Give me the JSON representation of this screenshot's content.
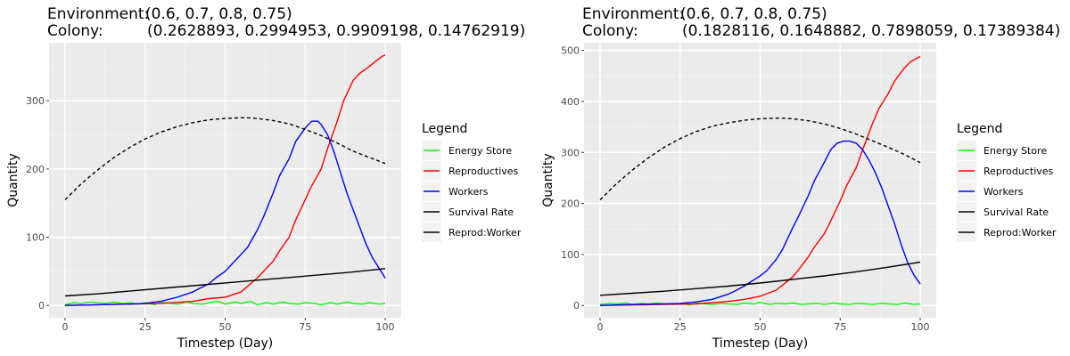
{
  "chart_data": [
    {
      "type": "line",
      "title_lines": [
        {
          "label": "Environment:",
          "value": "(0.6, 0.7, 0.8, 0.75)"
        },
        {
          "label": "Colony:",
          "value": "(0.2628893, 0.2994953, 0.9909198, 0.14762919)"
        }
      ],
      "xlabel": "Timestep (Day)",
      "ylabel": "Quantity",
      "xlim": [
        -5,
        105
      ],
      "ylim": [
        -18,
        385
      ],
      "x_ticks": [
        0,
        25,
        50,
        75,
        100
      ],
      "y_ticks": [
        0,
        100,
        200,
        300
      ],
      "grid": true,
      "legend": {
        "title": "Legend",
        "placement": "right",
        "entries": [
          "Energy Store",
          "Reproductives",
          "Workers",
          "Survival Rate",
          "Reprod:Worker"
        ]
      },
      "series": [
        {
          "name": "Energy Store",
          "color": "#00ff00",
          "style": "solid",
          "x": [
            0,
            3,
            5,
            8,
            10,
            13,
            15,
            18,
            20,
            23,
            25,
            28,
            30,
            33,
            35,
            38,
            40,
            43,
            45,
            48,
            50,
            53,
            55,
            58,
            60,
            63,
            65,
            68,
            70,
            73,
            75,
            78,
            80,
            83,
            85,
            88,
            90,
            93,
            95,
            98,
            100
          ],
          "y": [
            1,
            4,
            3,
            5,
            4,
            3,
            5,
            3,
            4,
            2,
            4,
            1,
            5,
            3,
            2,
            5,
            3,
            2,
            4,
            6,
            2,
            5,
            3,
            6,
            1,
            4,
            2,
            5,
            3,
            2,
            4,
            3,
            1,
            4,
            2,
            5,
            3,
            2,
            4,
            2,
            3
          ]
        },
        {
          "name": "Reproductives",
          "color": "#ff0000",
          "style": "solid",
          "x": [
            0,
            10,
            20,
            30,
            40,
            45,
            50,
            55,
            57,
            60,
            62,
            65,
            67,
            70,
            72,
            75,
            77,
            80,
            82,
            85,
            87,
            90,
            92,
            95,
            97,
            99,
            100
          ],
          "y": [
            0,
            1,
            2,
            3,
            6,
            10,
            12,
            20,
            28,
            40,
            50,
            65,
            80,
            100,
            125,
            155,
            175,
            200,
            230,
            270,
            300,
            330,
            340,
            350,
            358,
            365,
            367
          ]
        },
        {
          "name": "Workers",
          "color": "#0000ff",
          "style": "solid",
          "x": [
            0,
            10,
            20,
            25,
            30,
            35,
            40,
            42,
            45,
            47,
            50,
            52,
            55,
            57,
            60,
            62,
            65,
            67,
            70,
            72,
            75,
            77,
            79,
            80,
            82,
            84,
            86,
            88,
            90,
            92,
            94,
            96,
            98,
            100
          ],
          "y": [
            0,
            1,
            2,
            3,
            6,
            12,
            20,
            25,
            32,
            40,
            50,
            60,
            75,
            85,
            110,
            130,
            165,
            190,
            215,
            240,
            260,
            270,
            270,
            265,
            250,
            225,
            195,
            165,
            140,
            115,
            90,
            70,
            55,
            40
          ]
        },
        {
          "name": "Survival Rate",
          "color": "#000000",
          "style": "dashed",
          "x": [
            0,
            5,
            10,
            15,
            20,
            25,
            30,
            35,
            40,
            45,
            50,
            55,
            57,
            60,
            65,
            70,
            75,
            80,
            85,
            90,
            95,
            100
          ],
          "y": [
            155,
            178,
            198,
            216,
            231,
            244,
            254,
            262,
            268,
            272,
            274,
            275,
            275,
            274,
            271,
            266,
            258,
            249,
            238,
            226,
            217,
            208
          ]
        },
        {
          "name": "Reprod:Worker",
          "color": "#000000",
          "style": "solid",
          "x": [
            0,
            10,
            20,
            30,
            40,
            50,
            60,
            70,
            80,
            90,
            100
          ],
          "y": [
            14,
            17,
            21,
            25,
            29,
            33,
            37,
            41,
            45,
            49,
            54
          ]
        }
      ]
    },
    {
      "type": "line",
      "title_lines": [
        {
          "label": "Environment:",
          "value": "(0.6, 0.7, 0.8, 0.75)"
        },
        {
          "label": "Colony:",
          "value": "(0.1828116, 0.1648882, 0.7898059, 0.17389384)"
        }
      ],
      "xlabel": "Timestep (Day)",
      "ylabel": "Quantity",
      "xlim": [
        -5,
        105
      ],
      "ylim": [
        -24,
        515
      ],
      "x_ticks": [
        0,
        25,
        50,
        75,
        100
      ],
      "y_ticks": [
        0,
        100,
        200,
        300,
        400,
        500
      ],
      "grid": true,
      "legend": {
        "title": "Legend",
        "placement": "right",
        "entries": [
          "Energy Store",
          "Reproductives",
          "Workers",
          "Survival Rate",
          "Reprod:Worker"
        ]
      },
      "series": [
        {
          "name": "Energy Store",
          "color": "#00ff00",
          "style": "solid",
          "x": [
            0,
            3,
            5,
            8,
            10,
            13,
            15,
            18,
            20,
            23,
            25,
            28,
            30,
            33,
            35,
            38,
            40,
            43,
            45,
            48,
            50,
            53,
            55,
            58,
            60,
            63,
            65,
            68,
            70,
            73,
            75,
            78,
            80,
            83,
            85,
            88,
            90,
            93,
            95,
            98,
            100
          ],
          "y": [
            2,
            4,
            3,
            5,
            2,
            4,
            3,
            5,
            3,
            2,
            4,
            1,
            5,
            3,
            2,
            4,
            3,
            2,
            5,
            3,
            6,
            2,
            4,
            3,
            5,
            2,
            3,
            4,
            2,
            5,
            3,
            2,
            4,
            3,
            2,
            4,
            3,
            2,
            5,
            2,
            3
          ]
        },
        {
          "name": "Reproductives",
          "color": "#ff0000",
          "style": "solid",
          "x": [
            0,
            10,
            20,
            30,
            40,
            45,
            50,
            55,
            57,
            60,
            62,
            65,
            67,
            70,
            72,
            75,
            77,
            80,
            82,
            85,
            87,
            90,
            92,
            95,
            97,
            100
          ],
          "y": [
            0,
            1,
            2,
            3,
            8,
            12,
            18,
            30,
            40,
            55,
            70,
            95,
            115,
            140,
            165,
            205,
            235,
            270,
            305,
            355,
            385,
            415,
            440,
            465,
            478,
            488
          ]
        },
        {
          "name": "Workers",
          "color": "#0000ff",
          "style": "solid",
          "x": [
            0,
            10,
            20,
            25,
            30,
            35,
            40,
            42,
            45,
            47,
            50,
            52,
            55,
            57,
            60,
            62,
            65,
            67,
            70,
            72,
            74,
            76,
            78,
            80,
            82,
            84,
            86,
            88,
            90,
            92,
            94,
            96,
            98,
            100
          ],
          "y": [
            0,
            2,
            3,
            4,
            7,
            12,
            22,
            28,
            38,
            46,
            58,
            68,
            90,
            110,
            150,
            175,
            215,
            245,
            280,
            305,
            318,
            322,
            322,
            318,
            305,
            285,
            260,
            230,
            195,
            160,
            120,
            85,
            60,
            42
          ]
        },
        {
          "name": "Survival Rate",
          "color": "#000000",
          "style": "dashed",
          "x": [
            0,
            5,
            10,
            15,
            20,
            25,
            30,
            35,
            40,
            45,
            50,
            55,
            57,
            60,
            65,
            70,
            75,
            80,
            85,
            90,
            95,
            100
          ],
          "y": [
            207,
            238,
            265,
            289,
            310,
            327,
            341,
            351,
            358,
            363,
            366,
            367,
            367,
            366,
            362,
            356,
            347,
            336,
            323,
            310,
            296,
            280
          ]
        },
        {
          "name": "Reprod:Worker",
          "color": "#000000",
          "style": "solid",
          "x": [
            0,
            10,
            20,
            30,
            40,
            50,
            60,
            70,
            80,
            90,
            100
          ],
          "y": [
            20,
            24,
            28,
            33,
            38,
            44,
            51,
            58,
            66,
            75,
            85
          ]
        }
      ]
    }
  ]
}
